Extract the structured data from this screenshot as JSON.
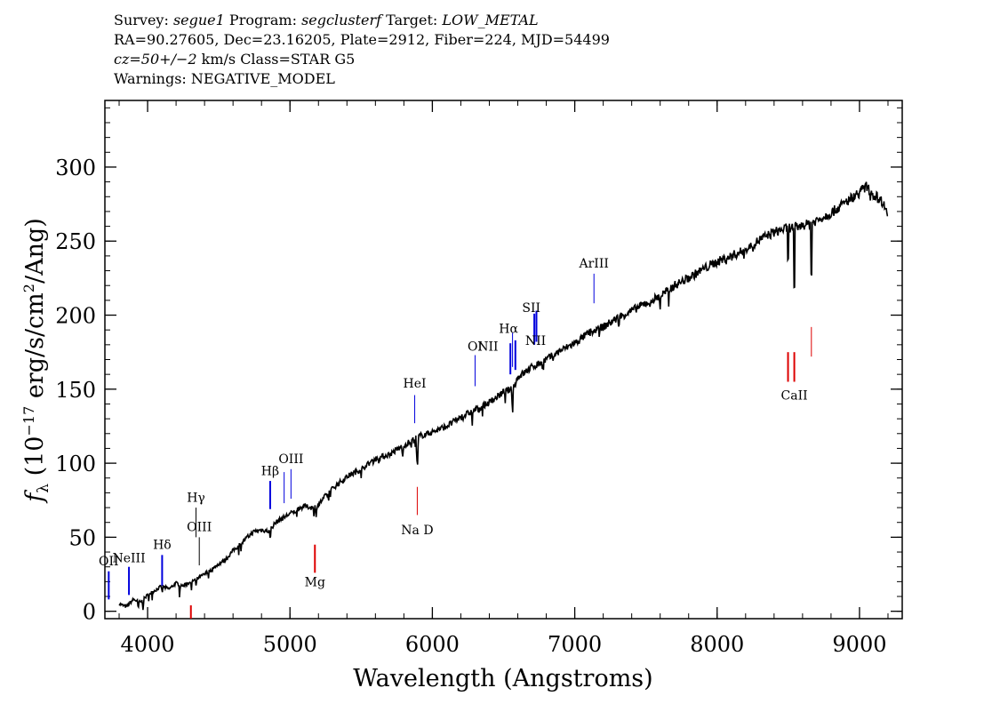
{
  "header": {
    "line1": {
      "survey_key": "Survey:",
      "survey": "segue1",
      "program_key": "Program:",
      "program": "segclusterf",
      "target_key": "Target:",
      "target": "LOW_METAL"
    },
    "line2": "RA=90.27605, Dec=23.16205, Plate=2912, Fiber=224, MJD=54499",
    "line3": {
      "cz": "cz=50+/−2",
      "rest": " km/s Class=STAR G5"
    },
    "line4": "Warnings: NEGATIVE_MODEL"
  },
  "chart_data": {
    "type": "line",
    "xlabel": "Wavelength (Angstroms)",
    "ylabel": "f_λ (10^-17 erg/s/cm^2/Ang)",
    "xlim": [
      3700,
      9300
    ],
    "ylim": [
      -5,
      345
    ],
    "x_ticks": [
      4000,
      5000,
      6000,
      7000,
      8000,
      9000
    ],
    "y_ticks": [
      0,
      50,
      100,
      150,
      200,
      250,
      300
    ],
    "x_minor_step": 200,
    "y_minor_step": 10,
    "grid": false,
    "series": [
      {
        "color": "#000000",
        "points": [
          [
            3800,
            5
          ],
          [
            3850,
            3
          ],
          [
            3900,
            8
          ],
          [
            3950,
            6
          ],
          [
            4000,
            11
          ],
          [
            4050,
            14
          ],
          [
            4100,
            17
          ],
          [
            4150,
            15
          ],
          [
            4200,
            19
          ],
          [
            4250,
            17
          ],
          [
            4300,
            20
          ],
          [
            4350,
            22
          ],
          [
            4400,
            25
          ],
          [
            4450,
            28
          ],
          [
            4500,
            32
          ],
          [
            4550,
            35
          ],
          [
            4600,
            41
          ],
          [
            4650,
            45
          ],
          [
            4700,
            50
          ],
          [
            4750,
            54
          ],
          [
            4800,
            55
          ],
          [
            4850,
            54
          ],
          [
            4900,
            60
          ],
          [
            4950,
            63
          ],
          [
            5000,
            66
          ],
          [
            5050,
            68
          ],
          [
            5100,
            71
          ],
          [
            5150,
            70
          ],
          [
            5200,
            72
          ],
          [
            5250,
            78
          ],
          [
            5300,
            83
          ],
          [
            5400,
            91
          ],
          [
            5500,
            96
          ],
          [
            5600,
            103
          ],
          [
            5700,
            106
          ],
          [
            5800,
            112
          ],
          [
            5900,
            118
          ],
          [
            6000,
            121
          ],
          [
            6100,
            125
          ],
          [
            6200,
            131
          ],
          [
            6300,
            136
          ],
          [
            6400,
            141
          ],
          [
            6500,
            148
          ],
          [
            6563,
            150
          ],
          [
            6600,
            158
          ],
          [
            6700,
            165
          ],
          [
            6800,
            170
          ],
          [
            6900,
            176
          ],
          [
            7000,
            181
          ],
          [
            7100,
            188
          ],
          [
            7200,
            192
          ],
          [
            7300,
            198
          ],
          [
            7400,
            203
          ],
          [
            7500,
            208
          ],
          [
            7600,
            213
          ],
          [
            7700,
            220
          ],
          [
            7800,
            225
          ],
          [
            7900,
            231
          ],
          [
            8000,
            236
          ],
          [
            8100,
            240
          ],
          [
            8200,
            244
          ],
          [
            8300,
            251
          ],
          [
            8400,
            256
          ],
          [
            8500,
            259
          ],
          [
            8600,
            260
          ],
          [
            8700,
            264
          ],
          [
            8800,
            269
          ],
          [
            8900,
            276
          ],
          [
            9000,
            283
          ],
          [
            9050,
            287
          ],
          [
            9100,
            281
          ],
          [
            9150,
            278
          ],
          [
            9200,
            270
          ]
        ],
        "absorption_features": [
          {
            "x": 3934,
            "depth": 6
          },
          {
            "x": 3968,
            "depth": 6
          },
          {
            "x": 4102,
            "depth": 5
          },
          {
            "x": 4226,
            "depth": 6
          },
          {
            "x": 4308,
            "depth": 6
          },
          {
            "x": 4340,
            "depth": 5
          },
          {
            "x": 4861,
            "depth": 8
          },
          {
            "x": 5169,
            "depth": 6
          },
          {
            "x": 5183,
            "depth": 10
          },
          {
            "x": 5270,
            "depth": 6
          },
          {
            "x": 5790,
            "depth": 8
          },
          {
            "x": 5850,
            "depth": 6
          },
          {
            "x": 5890,
            "depth": 14
          },
          {
            "x": 5896,
            "depth": 20
          },
          {
            "x": 6280,
            "depth": 8
          },
          {
            "x": 6563,
            "depth": 18
          },
          {
            "x": 7600,
            "depth": 8
          },
          {
            "x": 7660,
            "depth": 12
          },
          {
            "x": 8498,
            "depth": 35
          },
          {
            "x": 8542,
            "depth": 65
          },
          {
            "x": 8662,
            "depth": 52
          }
        ]
      }
    ],
    "lines": [
      {
        "label": "OII",
        "x": 3727,
        "y0": 8,
        "y1": 27,
        "color": "blue",
        "label_y": 31,
        "lw": 2
      },
      {
        "label": "NeIII",
        "x": 3869,
        "y0": 11,
        "y1": 30,
        "color": "blue",
        "label_y": 33,
        "lw": 2
      },
      {
        "label": "Hδ",
        "x": 4102,
        "y0": 17,
        "y1": 38,
        "color": "blue",
        "label_y": 42,
        "lw": 2
      },
      {
        "label": "Hγ",
        "x": 4340,
        "y0": 50,
        "y1": 70,
        "color": "black",
        "label_y": 74,
        "lw": 1
      },
      {
        "label": "OIII",
        "x": 4363,
        "y0": 31,
        "y1": 50,
        "color": "black",
        "label_y": 54,
        "lw": 1
      },
      {
        "label": "Hβ",
        "x": 4861,
        "y0": 69,
        "y1": 88,
        "color": "blue",
        "label_y": 92,
        "lw": 2
      },
      {
        "label": "",
        "x": 4959,
        "y0": 73,
        "y1": 94,
        "color": "blue",
        "label_y": 0,
        "lw": 1
      },
      {
        "label": "OIII",
        "x": 5007,
        "y0": 76,
        "y1": 96,
        "color": "blue",
        "label_y": 100,
        "lw": 1
      },
      {
        "label": "HeI",
        "x": 5876,
        "y0": 127,
        "y1": 146,
        "color": "blue",
        "label_y": 151,
        "lw": 1
      },
      {
        "label": "OI",
        "x": 6300,
        "y0": 152,
        "y1": 173,
        "color": "blue",
        "label_y": 176,
        "lw": 1
      },
      {
        "label": "NII",
        "x": 6548,
        "y0": 160,
        "y1": 181,
        "color": "blue",
        "label_y": 0,
        "lw": 2
      },
      {
        "label": "Hα",
        "x": 6563,
        "y0": 165,
        "y1": 188,
        "color": "blue",
        "label_y": 0,
        "lw": 1
      },
      {
        "label": "NII",
        "x": 6583,
        "y0": 163,
        "y1": 183,
        "color": "blue",
        "label_y": 0,
        "lw": 2
      },
      {
        "label": "SII",
        "x": 6716,
        "y0": 180,
        "y1": 201,
        "color": "blue",
        "label_y": 0,
        "lw": 2
      },
      {
        "label": "",
        "x": 6731,
        "y0": 182,
        "y1": 203,
        "color": "blue",
        "label_y": 0,
        "lw": 2
      },
      {
        "label": "ArIII",
        "x": 7135,
        "y0": 208,
        "y1": 228,
        "color": "blue",
        "label_y": 232,
        "lw": 1
      },
      {
        "label": "",
        "x": 4304,
        "y0": -5,
        "y1": 4,
        "color": "red",
        "label_y": 0,
        "lw": 2
      },
      {
        "label": "Mg",
        "x": 5175,
        "y0": 26,
        "y1": 45,
        "color": "red",
        "label_y": 17,
        "lw": 2
      },
      {
        "label": "Na D",
        "x": 5894,
        "y0": 65,
        "y1": 84,
        "color": "red",
        "label_y": 52,
        "lw": 1
      },
      {
        "label": "",
        "x": 8498,
        "y0": 155,
        "y1": 175,
        "color": "red",
        "label_y": 0,
        "lw": 2
      },
      {
        "label": "CaII",
        "x": 8542,
        "y0": 155,
        "y1": 175,
        "color": "red",
        "label_y": 143,
        "lw": 2
      },
      {
        "label": "",
        "x": 8662,
        "y0": 172,
        "y1": 192,
        "color": "red",
        "label_y": 0,
        "lw": 1
      }
    ],
    "custom_labels": [
      {
        "label": "NII",
        "x": 6390,
        "y": 176
      },
      {
        "label": "Hα",
        "x": 6535,
        "y": 188
      },
      {
        "label": "NII",
        "x": 6725,
        "y": 180
      },
      {
        "label": "SII",
        "x": 6695,
        "y": 202
      }
    ]
  }
}
